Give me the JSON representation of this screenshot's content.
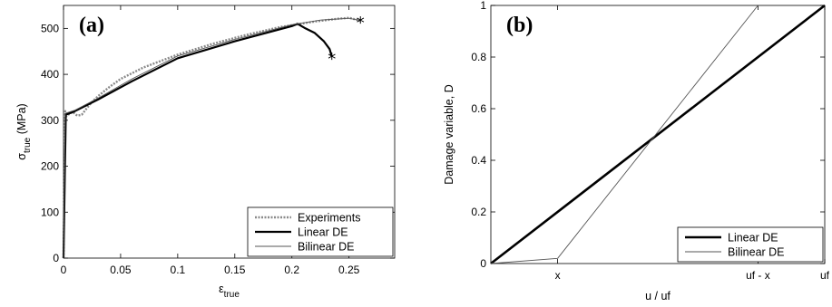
{
  "chart_data": [
    {
      "type": "line",
      "panel_label": "(a)",
      "xlabel": "ε",
      "xlabel_sub": "true",
      "ylabel": "σ",
      "ylabel_sub": "true",
      "ylabel_unit": " (MPa)",
      "xlim": [
        0,
        0.29
      ],
      "ylim": [
        0,
        550
      ],
      "xticks": [
        0,
        0.05,
        0.1,
        0.15,
        0.2,
        0.25
      ],
      "xtick_labels": [
        "0",
        "0.05",
        "0.1",
        "0.15",
        "0.2",
        "0.25"
      ],
      "yticks": [
        0,
        100,
        200,
        300,
        400,
        500
      ],
      "ytick_labels": [
        "0",
        "100",
        "200",
        "300",
        "400",
        "500"
      ],
      "legend_position": "bottom-right",
      "series": [
        {
          "name": "Experiments",
          "style": "dotted",
          "color": "#8a8a8a",
          "x": [
            0,
            0.0015,
            0.002,
            0.004,
            0.008,
            0.012,
            0.016,
            0.02,
            0.025,
            0.03,
            0.04,
            0.05,
            0.07,
            0.1,
            0.13,
            0.16,
            0.19,
            0.22,
            0.24,
            0.25,
            0.26
          ],
          "y": [
            0,
            320,
            308,
            312,
            318,
            310,
            312,
            325,
            340,
            352,
            372,
            390,
            415,
            443,
            466,
            486,
            503,
            515,
            521,
            523,
            517
          ]
        },
        {
          "name": "Linear DE",
          "style": "solid",
          "color": "#000000",
          "x": [
            0,
            0.002,
            0.01,
            0.03,
            0.06,
            0.1,
            0.15,
            0.2,
            0.205,
            0.212,
            0.22,
            0.228,
            0.233,
            0.235
          ],
          "y": [
            0,
            312,
            320,
            345,
            385,
            435,
            472,
            505,
            510,
            500,
            490,
            472,
            455,
            438
          ]
        },
        {
          "name": "Bilinear DE",
          "style": "thin",
          "color": "#555555",
          "x": [
            0,
            0.0015,
            0.01,
            0.03,
            0.06,
            0.1,
            0.15,
            0.2,
            0.225,
            0.25,
            0.26
          ],
          "y": [
            0,
            315,
            322,
            348,
            390,
            440,
            476,
            508,
            518,
            522,
            517
          ]
        }
      ],
      "markers": [
        {
          "symbol": "*",
          "x": 0.235,
          "y": 438
        },
        {
          "symbol": "*",
          "x": 0.26,
          "y": 516
        }
      ]
    },
    {
      "type": "line",
      "panel_label": "(b)",
      "xlabel": "u / uf",
      "ylabel": "Damage variable, D",
      "xlim": [
        0,
        1
      ],
      "ylim": [
        0,
        1
      ],
      "xticks": [
        0.2,
        0.8,
        1.0
      ],
      "xtick_labels": [
        "x",
        "uf - x",
        "uf"
      ],
      "yticks": [
        0,
        0.2,
        0.4,
        0.6,
        0.8,
        1
      ],
      "ytick_labels": [
        "0",
        "0.2",
        "0.4",
        "0.6",
        "0.8",
        "1"
      ],
      "legend_position": "bottom-right",
      "series": [
        {
          "name": "Linear DE",
          "style": "thick",
          "color": "#000000",
          "x": [
            0,
            1
          ],
          "y": [
            0,
            1
          ]
        },
        {
          "name": "Bilinear DE",
          "style": "thin",
          "color": "#555555",
          "x": [
            0,
            0.2,
            0.8
          ],
          "y": [
            0,
            0.02,
            1
          ]
        }
      ]
    }
  ]
}
